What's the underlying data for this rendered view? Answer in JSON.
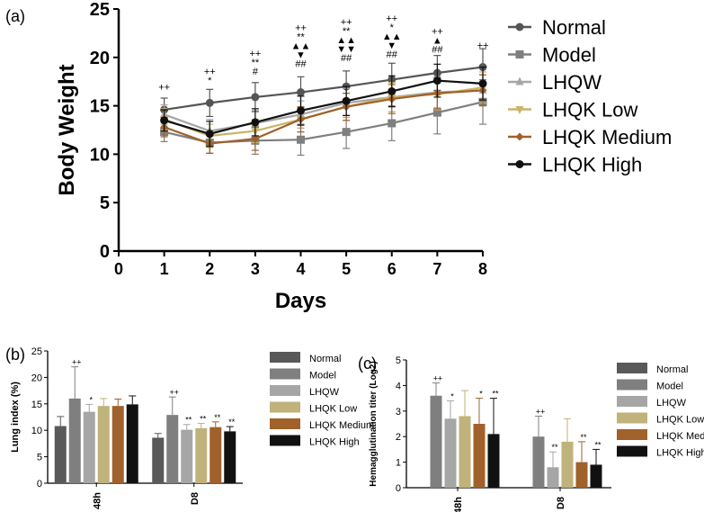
{
  "panels": {
    "a": "(a)",
    "b": "(b)",
    "c": "(c)"
  },
  "chart_data": [
    {
      "type": "line",
      "panel": "(a)",
      "xlabel": "Days",
      "ylabel": "Body Weight",
      "xlim": [
        0,
        8
      ],
      "ylim": [
        0,
        25
      ],
      "x_ticks": [
        "0",
        "1",
        "2",
        "3",
        "4",
        "5",
        "6",
        "7",
        "8"
      ],
      "y_ticks": [
        "0",
        "5",
        "10",
        "15",
        "20",
        "25"
      ],
      "x": [
        1,
        2,
        3,
        4,
        5,
        6,
        7,
        8
      ],
      "legend_position": "right",
      "series": [
        {
          "name": "Normal",
          "color": "#555555",
          "marker": "circle",
          "values": [
            14.6,
            15.3,
            15.9,
            16.4,
            17.0,
            17.7,
            18.4,
            19.0
          ],
          "errors": [
            1.2,
            1.4,
            1.5,
            1.6,
            1.6,
            1.7,
            1.8,
            1.9
          ]
        },
        {
          "name": "Model",
          "color": "#7f7f7f",
          "marker": "square",
          "values": [
            12.3,
            11.2,
            11.4,
            11.5,
            12.3,
            13.2,
            14.3,
            15.4
          ],
          "errors": [
            1.0,
            1.1,
            1.4,
            1.6,
            1.7,
            1.8,
            2.2,
            2.3
          ]
        },
        {
          "name": "LHQW",
          "color": "#a6a6a6",
          "marker": "triangle",
          "values": [
            14.1,
            12.4,
            13.2,
            14.1,
            15.3,
            15.9,
            16.4,
            16.6
          ],
          "errors": [
            1.0,
            1.2,
            1.3,
            1.4,
            1.5,
            1.5,
            1.6,
            1.6
          ]
        },
        {
          "name": "LHQK Low",
          "color": "#c8b46a",
          "marker": "triangle-down",
          "values": [
            13.6,
            11.9,
            12.4,
            13.6,
            14.9,
            15.9,
            16.2,
            16.9
          ],
          "errors": [
            1.1,
            1.2,
            1.2,
            1.3,
            1.4,
            1.5,
            1.6,
            1.6
          ]
        },
        {
          "name": "LHQK Medium",
          "color": "#a0612a",
          "marker": "diamond",
          "values": [
            12.8,
            11.1,
            11.6,
            13.6,
            14.9,
            15.7,
            16.3,
            16.6
          ],
          "errors": [
            1.0,
            1.0,
            1.2,
            1.3,
            1.4,
            1.5,
            1.6,
            1.6
          ]
        },
        {
          "name": "LHQK High",
          "color": "#111111",
          "marker": "circle",
          "values": [
            13.5,
            12.1,
            13.3,
            14.5,
            15.5,
            16.5,
            17.6,
            17.3
          ],
          "errors": [
            1.1,
            1.3,
            1.4,
            1.5,
            1.5,
            1.6,
            1.7,
            1.7
          ]
        }
      ],
      "annotations": [
        {
          "x": 1,
          "y": 16.6,
          "lines": [
            "++"
          ]
        },
        {
          "x": 2,
          "y": 17.3,
          "lines": [
            "++",
            "*"
          ]
        },
        {
          "x": 3,
          "y": 18.2,
          "lines": [
            "++",
            "**",
            "#"
          ]
        },
        {
          "x": 4,
          "y": 19.0,
          "lines": [
            "++",
            "**",
            "▲▲",
            "▼",
            "##"
          ]
        },
        {
          "x": 5,
          "y": 19.6,
          "lines": [
            "++",
            "**",
            "▲▲",
            "▼▼",
            "##"
          ]
        },
        {
          "x": 6,
          "y": 20.0,
          "lines": [
            "++",
            "*",
            "▲▲",
            "▼",
            "##"
          ]
        },
        {
          "x": 7,
          "y": 20.5,
          "lines": [
            "++",
            "▲",
            "##"
          ]
        },
        {
          "x": 8,
          "y": 20.9,
          "lines": [
            "++"
          ]
        }
      ]
    },
    {
      "type": "bar",
      "panel": "(b)",
      "ylabel": "Lung index (%)",
      "categories": [
        "48h",
        "D8"
      ],
      "ylim": [
        0,
        25
      ],
      "y_ticks": [
        "0",
        "5",
        "10",
        "15",
        "20",
        "25"
      ],
      "legend_position": "right",
      "series": [
        {
          "name": "Normal",
          "color": "#595959",
          "values": [
            10.8,
            8.6
          ],
          "errors": [
            1.8,
            0.8
          ],
          "labels": [
            "",
            ""
          ]
        },
        {
          "name": "Model",
          "color": "#7f7f7f",
          "values": [
            16.0,
            12.9
          ],
          "errors": [
            6.0,
            3.4
          ],
          "labels": [
            "++",
            "++"
          ]
        },
        {
          "name": "LHQW",
          "color": "#a6a6a6",
          "values": [
            13.5,
            10.1
          ],
          "errors": [
            1.4,
            1.0
          ],
          "labels": [
            "*",
            "**"
          ]
        },
        {
          "name": "LHQK Low",
          "color": "#bfb27a",
          "values": [
            14.6,
            10.4
          ],
          "errors": [
            1.4,
            0.9
          ],
          "labels": [
            "",
            "**"
          ]
        },
        {
          "name": "LHQK Medium",
          "color": "#a0612a",
          "values": [
            14.6,
            10.6
          ],
          "errors": [
            1.3,
            1.0
          ],
          "labels": [
            "",
            "**"
          ]
        },
        {
          "name": "LHQK High",
          "color": "#111111",
          "values": [
            14.9,
            9.8
          ],
          "errors": [
            1.6,
            0.9
          ],
          "labels": [
            "",
            "**"
          ]
        }
      ]
    },
    {
      "type": "bar",
      "panel": "(c)",
      "ylabel": "Hemagglutination titer (Log2)",
      "categories": [
        "48h",
        "D8"
      ],
      "ylim": [
        0,
        5
      ],
      "y_ticks": [
        "0",
        "1",
        "2",
        "3",
        "4",
        "5"
      ],
      "legend_position": "right",
      "series": [
        {
          "name": "Normal",
          "color": "#595959",
          "values": [
            0,
            0
          ],
          "errors": [
            0,
            0
          ],
          "labels": [
            "",
            ""
          ]
        },
        {
          "name": "Model",
          "color": "#7f7f7f",
          "values": [
            3.6,
            2.0
          ],
          "errors": [
            0.5,
            0.8
          ],
          "labels": [
            "++",
            "++"
          ]
        },
        {
          "name": "LHQW",
          "color": "#a6a6a6",
          "values": [
            2.7,
            0.8
          ],
          "errors": [
            0.7,
            0.6
          ],
          "labels": [
            "*",
            "**"
          ]
        },
        {
          "name": "LHQK Low",
          "color": "#bfb27a",
          "values": [
            2.8,
            1.8
          ],
          "errors": [
            1.0,
            0.9
          ],
          "labels": [
            "",
            ""
          ]
        },
        {
          "name": "LHQK Medium",
          "color": "#a0612a",
          "values": [
            2.5,
            1.0
          ],
          "errors": [
            1.0,
            0.8
          ],
          "labels": [
            "*",
            "**"
          ]
        },
        {
          "name": "LHQK High",
          "color": "#111111",
          "values": [
            2.1,
            0.9
          ],
          "errors": [
            1.4,
            0.6
          ],
          "labels": [
            "**",
            "**"
          ]
        }
      ]
    }
  ]
}
